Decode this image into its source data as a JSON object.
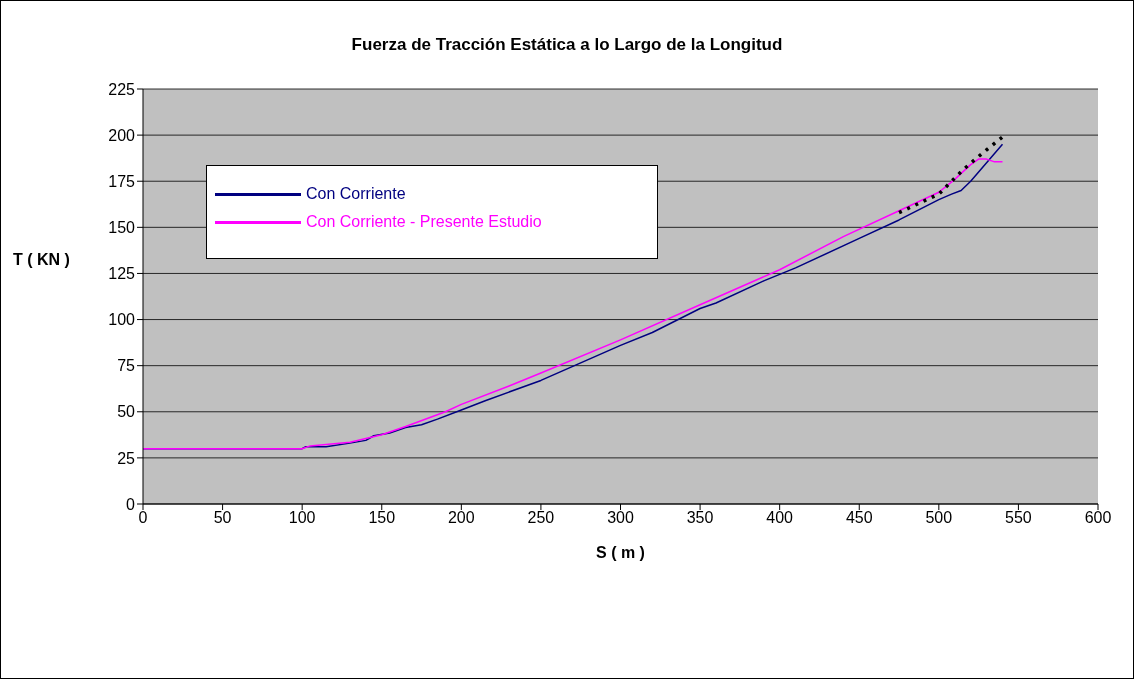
{
  "chart_data": {
    "type": "line",
    "title": "Fuerza de Tracción Estática a lo Largo de la Longitud",
    "xlabel": "S ( m )",
    "ylabel": "T ( KN )",
    "xlim": [
      0,
      600
    ],
    "xticks": [
      0,
      50,
      100,
      150,
      200,
      250,
      300,
      350,
      400,
      450,
      500,
      550,
      600
    ],
    "ylim": [
      0,
      225
    ],
    "yticks": [
      0,
      25,
      50,
      75,
      100,
      125,
      150,
      175,
      200,
      225
    ],
    "grid": "y",
    "legend": "top left",
    "marker": "none",
    "series": [
      {
        "name": "Con Corriente",
        "color": "#000080",
        "line_style": "solid",
        "x": [
          0,
          100,
          102,
          115,
          130,
          140,
          145,
          155,
          165,
          175,
          185,
          200,
          215,
          250,
          300,
          320,
          350,
          360,
          390,
          410,
          450,
          475,
          500,
          508,
          514,
          520,
          540
        ],
        "values": [
          30,
          30,
          31,
          31,
          33,
          34.5,
          37,
          38.5,
          41.5,
          43,
          46,
          51,
          56,
          67,
          86,
          93,
          106,
          109,
          121,
          128,
          144,
          154,
          165,
          168,
          170,
          175,
          195
        ]
      },
      {
        "name": "Con Corriente - Presente Estudio",
        "color": "#ff00ff",
        "line_style": "solid",
        "x": [
          0,
          100,
          105,
          130,
          150,
          165,
          190,
          200,
          230,
          250,
          300,
          350,
          400,
          440,
          475,
          500,
          510,
          520,
          525,
          530,
          535,
          540
        ],
        "values": [
          30,
          30,
          31.5,
          33.5,
          37.5,
          42,
          50,
          54,
          64,
          71,
          89,
          108,
          127,
          145,
          159,
          169,
          176,
          184,
          187,
          187,
          185.5,
          185.5
        ]
      },
      {
        "color": "#000000",
        "line_style": "dotted",
        "x": [
          475,
          490,
          500,
          508,
          515,
          523,
          530,
          540
        ],
        "values": [
          158,
          164,
          168,
          175,
          181,
          187,
          192,
          199
        ]
      }
    ]
  }
}
